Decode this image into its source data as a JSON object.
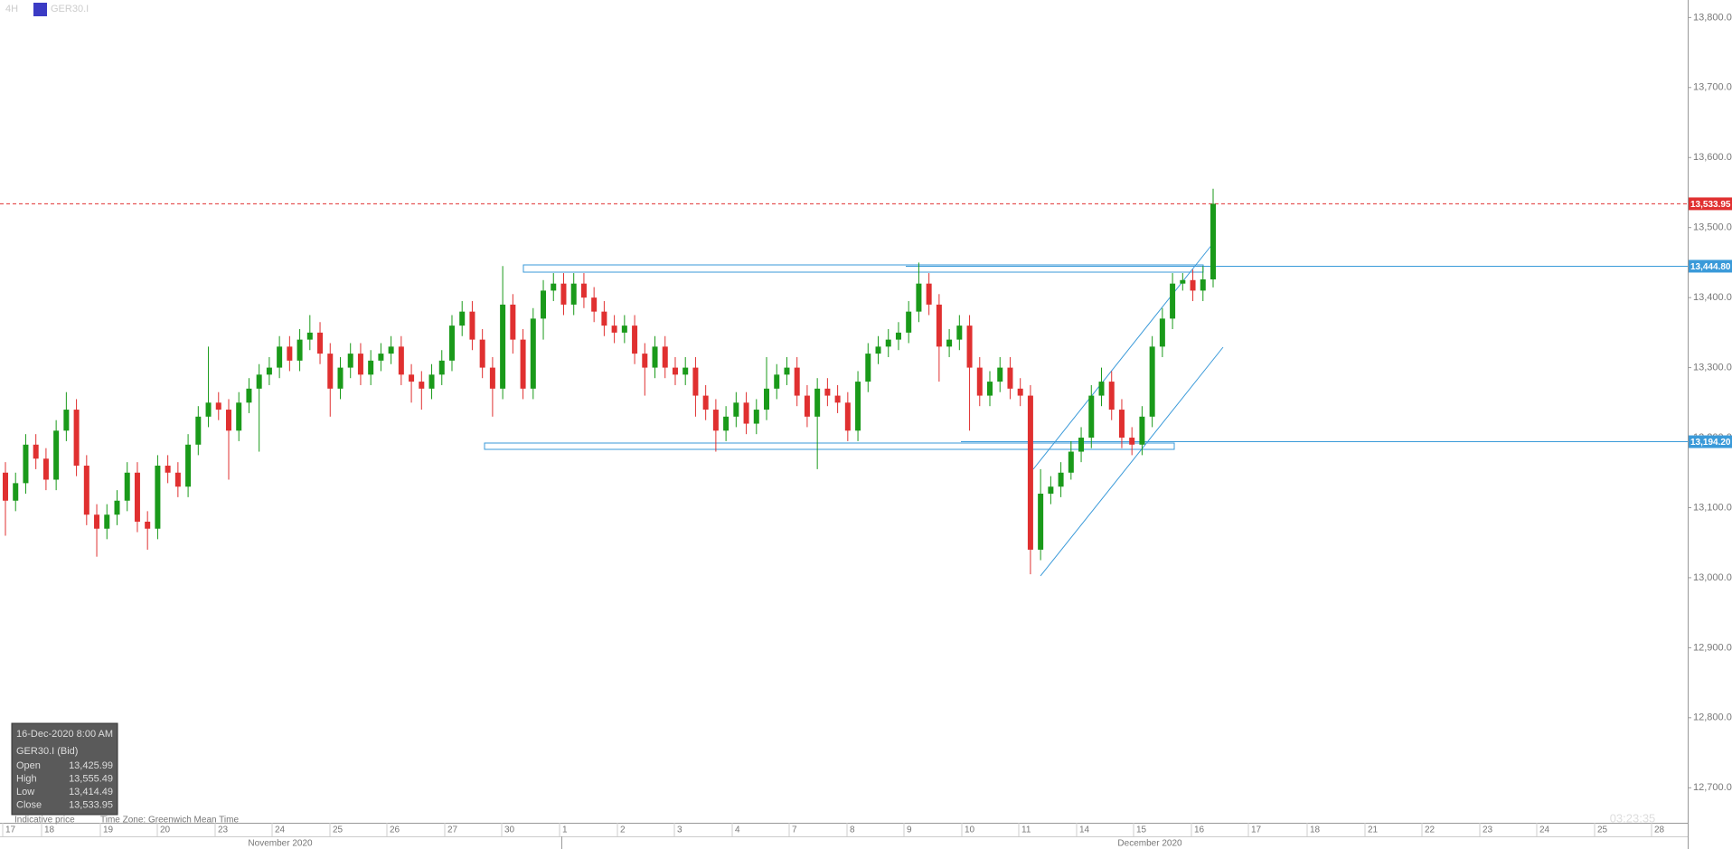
{
  "chart_data": {
    "type": "candlestick",
    "symbol": "GER30.I",
    "timeframe": "4H",
    "ylim": [
      12650,
      13825
    ],
    "yticks": [
      {
        "value": 12700,
        "label": "12,700.00"
      },
      {
        "value": 12800,
        "label": "12,800.00"
      },
      {
        "value": 12900,
        "label": "12,900.00"
      },
      {
        "value": 13000,
        "label": "13,000.00"
      },
      {
        "value": 13100,
        "label": "13,100.00"
      },
      {
        "value": 13200,
        "label": "13,200.00"
      },
      {
        "value": 13300,
        "label": "13,300.00"
      },
      {
        "value": 13400,
        "label": "13,400.00"
      },
      {
        "value": 13500,
        "label": "13,500.00"
      },
      {
        "value": 13600,
        "label": "13,600.00"
      },
      {
        "value": 13700,
        "label": "13,700.00"
      },
      {
        "value": 13800,
        "label": "13,800.00"
      }
    ],
    "up_color": "#1a9a1a",
    "down_color": "#e03030",
    "price_lines": [
      {
        "value": 13533.95,
        "label": "13,533.95",
        "color": "#e03030",
        "style": "dashed"
      },
      {
        "value": 13444.8,
        "label": "13,444.80",
        "color": "#3a9ad9",
        "style": "solid"
      },
      {
        "value": 13194.2,
        "label": "13,194.20",
        "color": "#3a9ad9",
        "style": "solid"
      }
    ],
    "date_labels": [
      "17",
      "18",
      "19",
      "20",
      "23",
      "24",
      "25",
      "26",
      "27",
      "30",
      "1",
      "2",
      "3",
      "4",
      "7",
      "8",
      "9",
      "10",
      "11",
      "14",
      "15",
      "16",
      "17",
      "18",
      "21",
      "22",
      "23",
      "24",
      "25",
      "28"
    ],
    "month_labels": [
      "November 2020",
      "December 2020"
    ],
    "candles": [
      [
        13150,
        13165,
        13060,
        13110
      ],
      [
        13110,
        13150,
        13095,
        13135
      ],
      [
        13135,
        13205,
        13120,
        13190
      ],
      [
        13190,
        13205,
        13155,
        13170
      ],
      [
        13170,
        13185,
        13125,
        13140
      ],
      [
        13140,
        13225,
        13125,
        13210
      ],
      [
        13210,
        13265,
        13195,
        13240
      ],
      [
        13240,
        13255,
        13145,
        13160
      ],
      [
        13160,
        13175,
        13075,
        13090
      ],
      [
        13090,
        13105,
        13030,
        13070
      ],
      [
        13070,
        13105,
        13055,
        13090
      ],
      [
        13090,
        13125,
        13075,
        13110
      ],
      [
        13110,
        13165,
        13095,
        13150
      ],
      [
        13150,
        13165,
        13065,
        13080
      ],
      [
        13080,
        13095,
        13040,
        13070
      ],
      [
        13070,
        13175,
        13055,
        13160
      ],
      [
        13160,
        13175,
        13135,
        13150
      ],
      [
        13150,
        13165,
        13115,
        13130
      ],
      [
        13130,
        13205,
        13115,
        13190
      ],
      [
        13190,
        13245,
        13175,
        13230
      ],
      [
        13230,
        13330,
        13215,
        13250
      ],
      [
        13250,
        13265,
        13225,
        13240
      ],
      [
        13240,
        13255,
        13140,
        13210
      ],
      [
        13210,
        13265,
        13195,
        13250
      ],
      [
        13250,
        13285,
        13235,
        13270
      ],
      [
        13270,
        13305,
        13180,
        13290
      ],
      [
        13290,
        13315,
        13275,
        13300
      ],
      [
        13300,
        13345,
        13285,
        13330
      ],
      [
        13330,
        13345,
        13295,
        13310
      ],
      [
        13310,
        13355,
        13295,
        13340
      ],
      [
        13340,
        13375,
        13325,
        13350
      ],
      [
        13350,
        13365,
        13305,
        13320
      ],
      [
        13320,
        13335,
        13230,
        13270
      ],
      [
        13270,
        13315,
        13255,
        13300
      ],
      [
        13300,
        13335,
        13285,
        13320
      ],
      [
        13320,
        13335,
        13275,
        13290
      ],
      [
        13290,
        13325,
        13275,
        13310
      ],
      [
        13310,
        13335,
        13295,
        13320
      ],
      [
        13320,
        13345,
        13305,
        13330
      ],
      [
        13330,
        13345,
        13275,
        13290
      ],
      [
        13290,
        13305,
        13250,
        13280
      ],
      [
        13280,
        13295,
        13240,
        13270
      ],
      [
        13270,
        13305,
        13255,
        13290
      ],
      [
        13290,
        13325,
        13275,
        13310
      ],
      [
        13310,
        13375,
        13295,
        13360
      ],
      [
        13360,
        13395,
        13345,
        13380
      ],
      [
        13380,
        13395,
        13325,
        13340
      ],
      [
        13340,
        13355,
        13285,
        13300
      ],
      [
        13300,
        13315,
        13230,
        13270
      ],
      [
        13270,
        13445,
        13255,
        13390
      ],
      [
        13390,
        13405,
        13320,
        13340
      ],
      [
        13340,
        13355,
        13255,
        13270
      ],
      [
        13270,
        13385,
        13255,
        13370
      ],
      [
        13370,
        13425,
        13340,
        13410
      ],
      [
        13410,
        13435,
        13395,
        13420
      ],
      [
        13420,
        13435,
        13375,
        13390
      ],
      [
        13390,
        13435,
        13375,
        13420
      ],
      [
        13420,
        13435,
        13385,
        13400
      ],
      [
        13400,
        13415,
        13365,
        13380
      ],
      [
        13380,
        13395,
        13345,
        13360
      ],
      [
        13360,
        13375,
        13335,
        13350
      ],
      [
        13350,
        13375,
        13335,
        13360
      ],
      [
        13360,
        13375,
        13305,
        13320
      ],
      [
        13320,
        13335,
        13260,
        13300
      ],
      [
        13300,
        13345,
        13285,
        13330
      ],
      [
        13330,
        13345,
        13285,
        13300
      ],
      [
        13300,
        13315,
        13275,
        13290
      ],
      [
        13290,
        13315,
        13275,
        13300
      ],
      [
        13300,
        13315,
        13230,
        13260
      ],
      [
        13260,
        13275,
        13225,
        13240
      ],
      [
        13240,
        13255,
        13180,
        13210
      ],
      [
        13210,
        13245,
        13195,
        13230
      ],
      [
        13230,
        13265,
        13215,
        13250
      ],
      [
        13250,
        13265,
        13205,
        13220
      ],
      [
        13220,
        13255,
        13205,
        13240
      ],
      [
        13240,
        13315,
        13225,
        13270
      ],
      [
        13270,
        13305,
        13255,
        13290
      ],
      [
        13290,
        13315,
        13275,
        13300
      ],
      [
        13300,
        13315,
        13245,
        13260
      ],
      [
        13260,
        13275,
        13215,
        13230
      ],
      [
        13230,
        13285,
        13155,
        13270
      ],
      [
        13270,
        13285,
        13245,
        13260
      ],
      [
        13260,
        13275,
        13235,
        13250
      ],
      [
        13250,
        13265,
        13195,
        13210
      ],
      [
        13210,
        13295,
        13195,
        13280
      ],
      [
        13280,
        13335,
        13265,
        13320
      ],
      [
        13320,
        13345,
        13305,
        13330
      ],
      [
        13330,
        13355,
        13315,
        13340
      ],
      [
        13340,
        13365,
        13325,
        13350
      ],
      [
        13350,
        13395,
        13335,
        13380
      ],
      [
        13380,
        13450,
        13365,
        13420
      ],
      [
        13420,
        13435,
        13375,
        13390
      ],
      [
        13390,
        13405,
        13280,
        13330
      ],
      [
        13330,
        13355,
        13315,
        13340
      ],
      [
        13340,
        13375,
        13325,
        13360
      ],
      [
        13360,
        13375,
        13210,
        13300
      ],
      [
        13300,
        13315,
        13245,
        13260
      ],
      [
        13260,
        13295,
        13245,
        13280
      ],
      [
        13280,
        13315,
        13265,
        13300
      ],
      [
        13300,
        13315,
        13255,
        13270
      ],
      [
        13270,
        13285,
        13245,
        13260
      ],
      [
        13260,
        13275,
        13005,
        13040
      ],
      [
        13040,
        13155,
        13025,
        13120
      ],
      [
        13120,
        13145,
        13105,
        13130
      ],
      [
        13130,
        13165,
        13115,
        13150
      ],
      [
        13150,
        13195,
        13140,
        13180
      ],
      [
        13180,
        13215,
        13165,
        13200
      ],
      [
        13200,
        13275,
        13185,
        13260
      ],
      [
        13260,
        13300,
        13245,
        13280
      ],
      [
        13280,
        13295,
        13225,
        13240
      ],
      [
        13240,
        13255,
        13185,
        13200
      ],
      [
        13200,
        13215,
        13175,
        13190
      ],
      [
        13190,
        13245,
        13175,
        13230
      ],
      [
        13230,
        13345,
        13215,
        13330
      ],
      [
        13330,
        13385,
        13315,
        13370
      ],
      [
        13370,
        13435,
        13355,
        13420
      ],
      [
        13420,
        13435,
        13410,
        13425
      ],
      [
        13425,
        13440,
        13395,
        13410
      ],
      [
        13410,
        13445,
        13395,
        13426
      ],
      [
        13425.99,
        13555.49,
        13414.49,
        13533.95
      ]
    ],
    "info_box": {
      "datetime": "16-Dec-2020 8:00 AM",
      "instrument": "GER30.I (Bid)",
      "rows": [
        [
          "Open",
          "13,425.99"
        ],
        [
          "High",
          "13,555.49"
        ],
        [
          "Low",
          "13,414.49"
        ],
        [
          "Close",
          "13,533.95"
        ]
      ]
    },
    "footer": {
      "price_type": "Indicative price",
      "time_zone": "Time Zone: Greenwich Mean Time",
      "countdown": "03:23:35"
    }
  }
}
